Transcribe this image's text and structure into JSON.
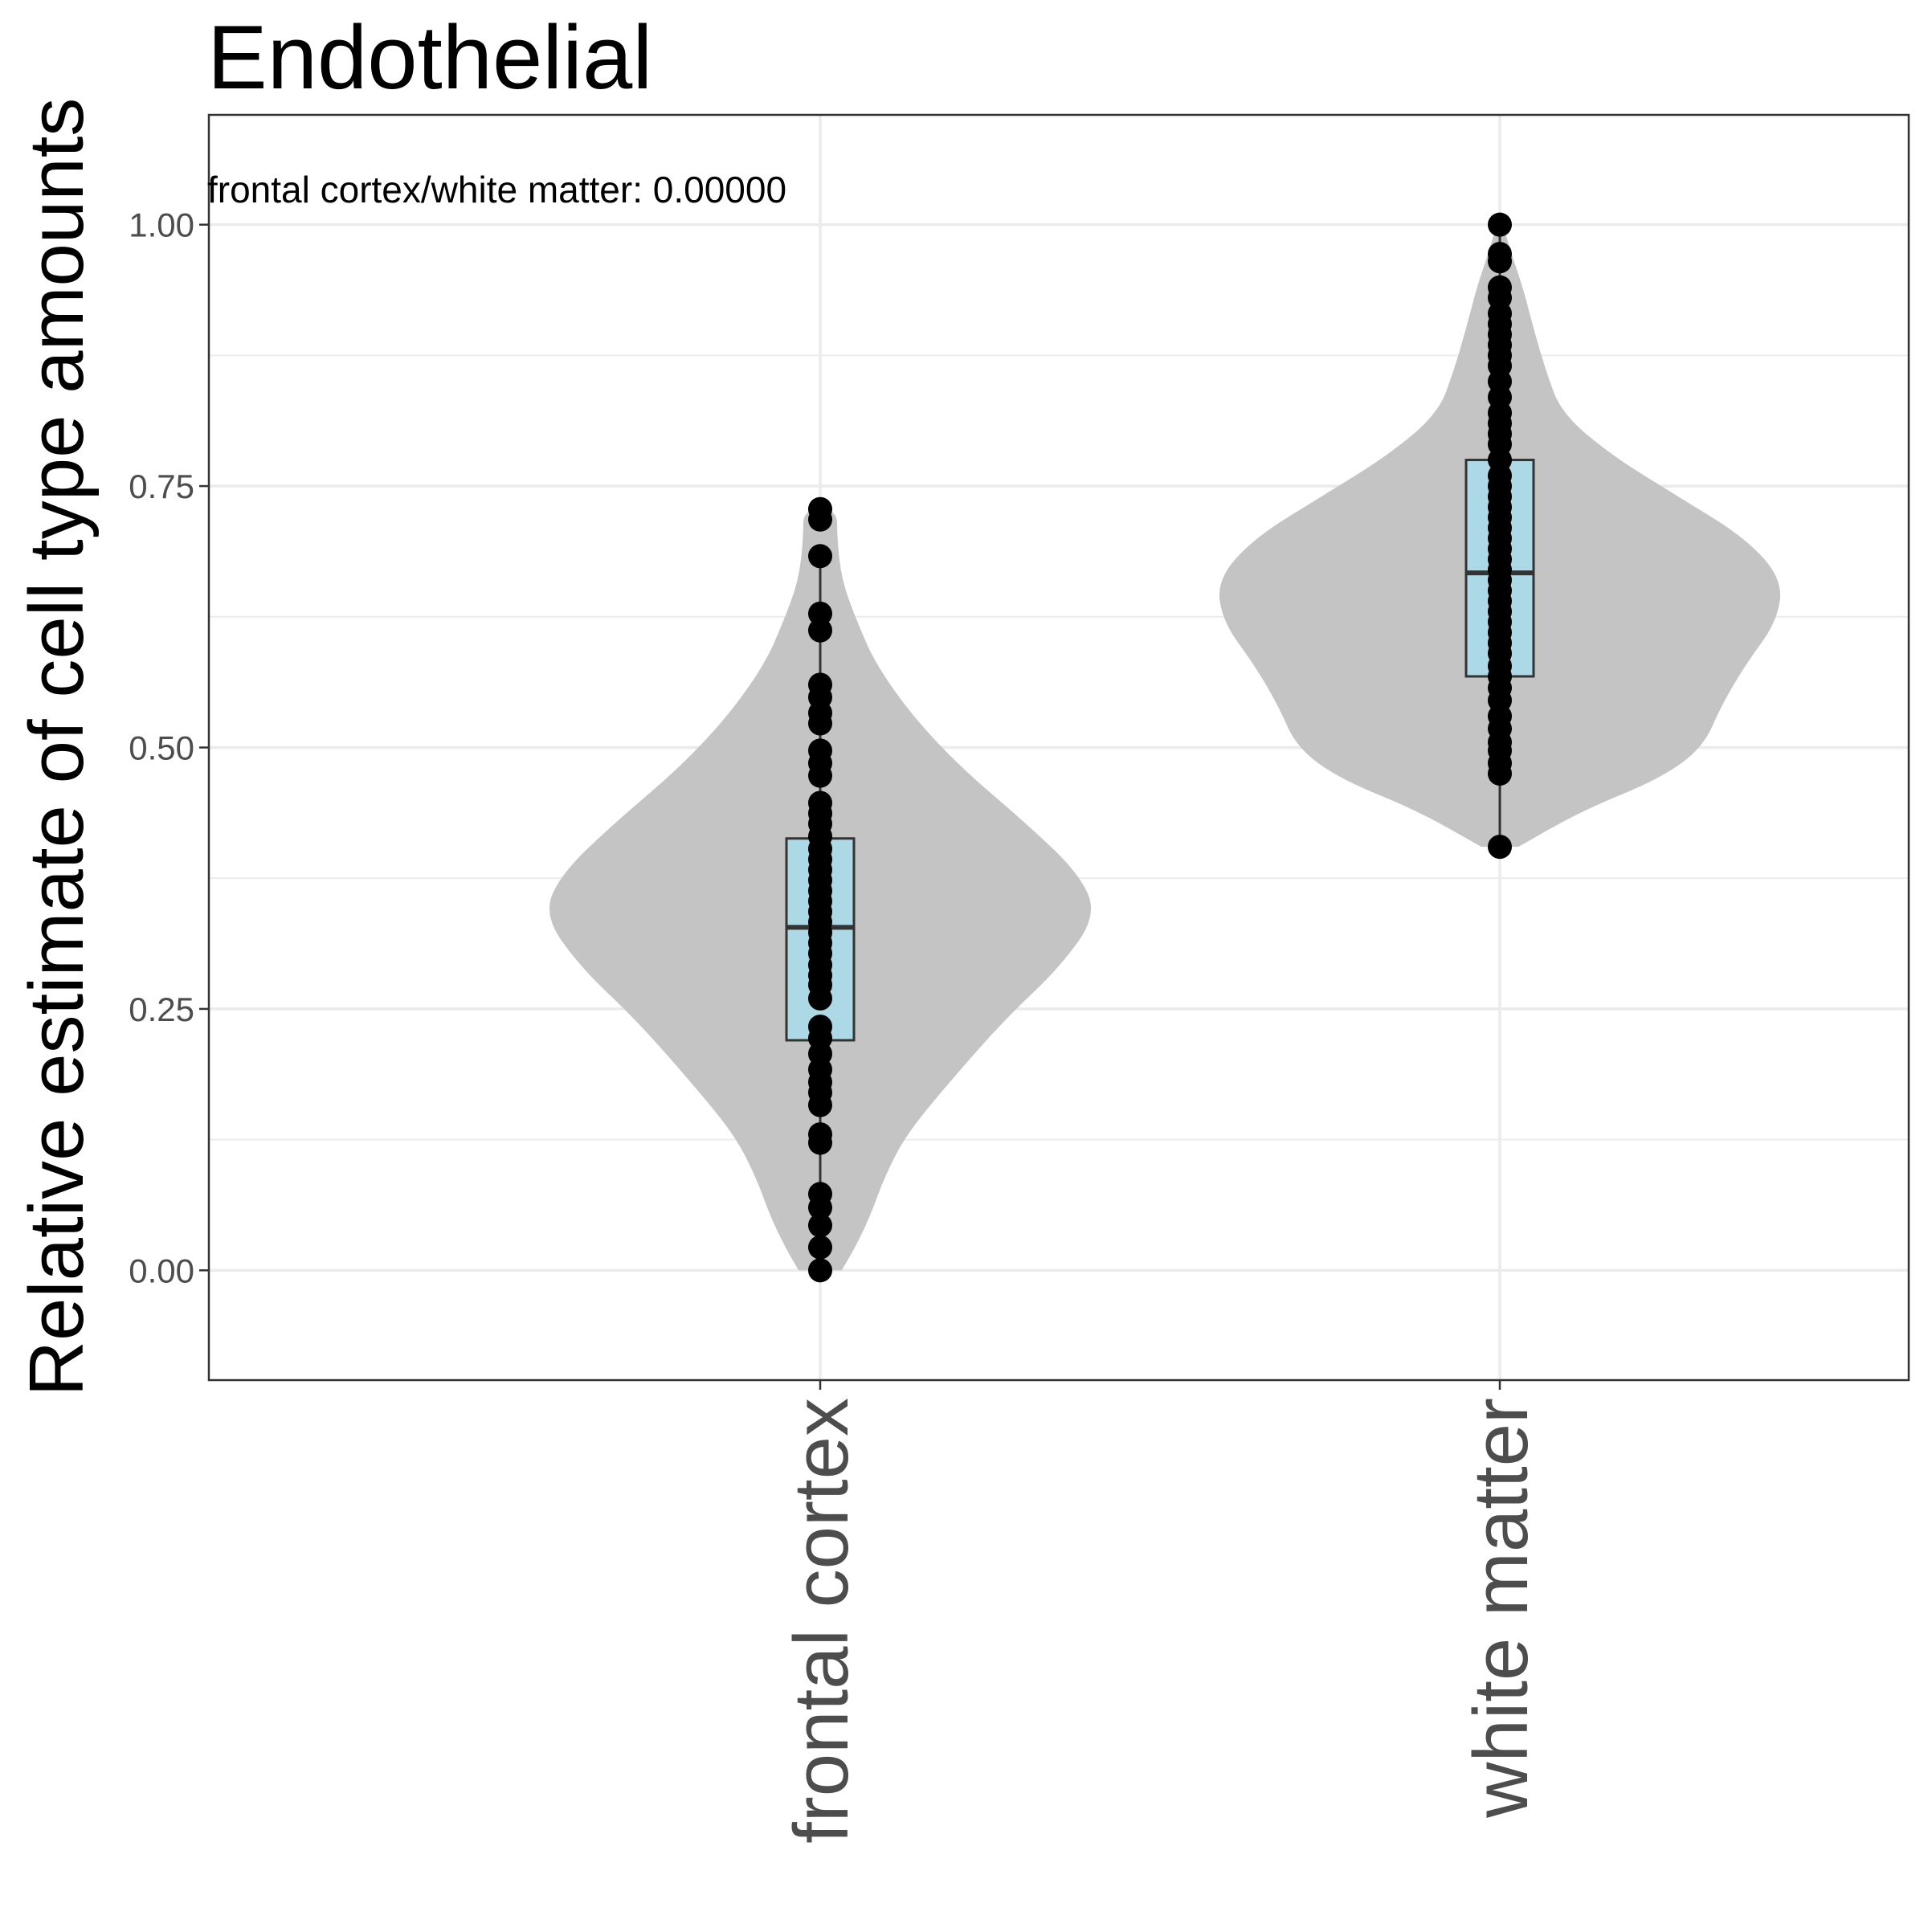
{
  "chart_data": {
    "type": "violin",
    "title": "Endothelial",
    "ylabel": "Relative estimate of cell type amounts",
    "xlabel": "",
    "categories": [
      "frontal cortex",
      "white matter"
    ],
    "ylim": [
      -0.105,
      1.105
    ],
    "yticks": [
      0.0,
      0.25,
      0.5,
      0.75,
      1.0
    ],
    "ytick_labels": [
      "0.00",
      "0.25",
      "0.50",
      "0.75",
      "1.00"
    ],
    "grid": true,
    "annotation": "frontal cortex/white matter: 0.00000",
    "colors": {
      "violin": "#c4c4c4",
      "box": "#add8e6",
      "box_outline": "#333333",
      "points": "#000000",
      "grid_major": "#ebebeb",
      "panel_border": "#333333"
    },
    "series": [
      {
        "category": "frontal cortex",
        "box": {
          "q1": 0.22,
          "median": 0.328,
          "q3": 0.413,
          "whisker_low": 0.0,
          "whisker_high": 0.683
        },
        "violin_range": [
          0.0,
          0.728
        ],
        "density": [
          [
            0.0,
            0.07
          ],
          [
            0.02,
            0.11
          ],
          [
            0.05,
            0.16
          ],
          [
            0.09,
            0.21
          ],
          [
            0.13,
            0.28
          ],
          [
            0.18,
            0.42
          ],
          [
            0.24,
            0.6
          ],
          [
            0.29,
            0.78
          ],
          [
            0.34,
            0.9
          ],
          [
            0.38,
            0.84
          ],
          [
            0.43,
            0.66
          ],
          [
            0.48,
            0.46
          ],
          [
            0.53,
            0.3
          ],
          [
            0.58,
            0.18
          ],
          [
            0.62,
            0.12
          ],
          [
            0.66,
            0.07
          ],
          [
            0.7,
            0.055
          ],
          [
            0.728,
            0.055
          ]
        ],
        "points": [
          0.0,
          0.022,
          0.043,
          0.06,
          0.073,
          0.122,
          0.13,
          0.158,
          0.17,
          0.18,
          0.192,
          0.207,
          0.222,
          0.233,
          0.26,
          0.273,
          0.282,
          0.292,
          0.303,
          0.313,
          0.323,
          0.333,
          0.343,
          0.353,
          0.363,
          0.373,
          0.383,
          0.393,
          0.403,
          0.415,
          0.427,
          0.437,
          0.447,
          0.473,
          0.485,
          0.497,
          0.523,
          0.533,
          0.548,
          0.56,
          0.612,
          0.628,
          0.683,
          0.718,
          0.728
        ]
      },
      {
        "category": "white matter",
        "box": {
          "q1": 0.568,
          "median": 0.667,
          "q3": 0.775,
          "whisker_low": 0.405,
          "whisker_high": 1.0
        },
        "violin_range": [
          0.405,
          1.0
        ],
        "density": [
          [
            0.405,
            0.06
          ],
          [
            0.44,
            0.27
          ],
          [
            0.47,
            0.52
          ],
          [
            0.5,
            0.66
          ],
          [
            0.54,
            0.72
          ],
          [
            0.58,
            0.8
          ],
          [
            0.62,
            0.9
          ],
          [
            0.66,
            0.92
          ],
          [
            0.7,
            0.8
          ],
          [
            0.74,
            0.58
          ],
          [
            0.78,
            0.36
          ],
          [
            0.82,
            0.2
          ],
          [
            0.86,
            0.15
          ],
          [
            0.9,
            0.11
          ],
          [
            0.94,
            0.075
          ],
          [
            0.97,
            0.04
          ],
          [
            1.0,
            0.01
          ]
        ],
        "points": [
          0.405,
          0.475,
          0.485,
          0.497,
          0.505,
          0.518,
          0.53,
          0.545,
          0.557,
          0.568,
          0.578,
          0.59,
          0.6,
          0.61,
          0.62,
          0.63,
          0.64,
          0.65,
          0.66,
          0.67,
          0.68,
          0.69,
          0.7,
          0.71,
          0.72,
          0.73,
          0.74,
          0.75,
          0.76,
          0.775,
          0.79,
          0.8,
          0.81,
          0.82,
          0.835,
          0.85,
          0.865,
          0.875,
          0.885,
          0.895,
          0.905,
          0.915,
          0.93,
          0.94,
          0.965,
          0.972,
          1.0
        ]
      }
    ]
  }
}
